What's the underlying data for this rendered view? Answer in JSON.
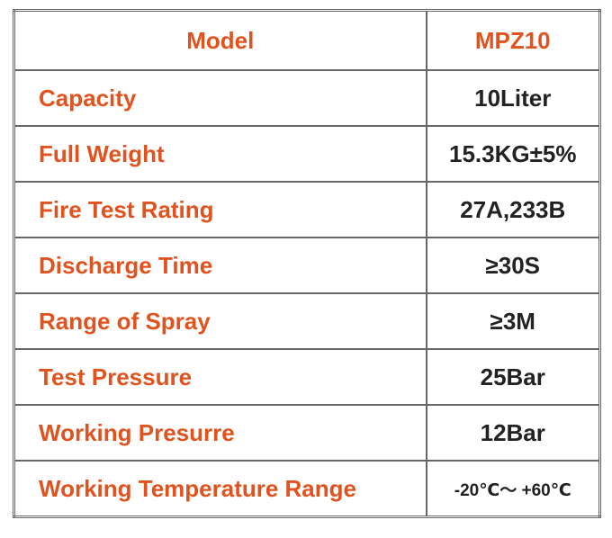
{
  "table": {
    "header": [
      "Model",
      "MPZ10"
    ],
    "rows": [
      [
        "Capacity",
        "10Liter"
      ],
      [
        "Full Weight",
        "15.3KG±5%"
      ],
      [
        "Fire Test Rating",
        "27A,233B"
      ],
      [
        "Discharge Time",
        "≥30S"
      ],
      [
        "Range of Spray",
        "≥3M"
      ],
      [
        "Test Pressure",
        "25Bar"
      ],
      [
        "Working Presurre",
        "12Bar"
      ],
      [
        "Working Temperature Range",
        "-20℃～ +60℃"
      ]
    ]
  }
}
